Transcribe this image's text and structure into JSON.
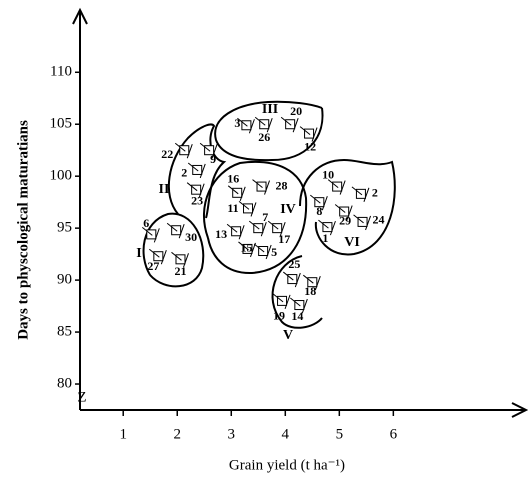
{
  "chart_data": {
    "type": "scatter",
    "x_label": "Grain yield (t ha⁻¹)",
    "y_label": "Days to physcological maturatians",
    "axis_break": "Z",
    "xlim": [
      0.2,
      8.4
    ],
    "ylim": [
      77.5,
      115.8
    ],
    "xticks": [
      1,
      2,
      3,
      4,
      5,
      6
    ],
    "yticks": [
      80,
      85,
      90,
      95,
      100,
      105,
      110
    ],
    "point_labels": [
      "1",
      "2",
      "2",
      "3",
      "5",
      "6",
      "7",
      "8",
      "9",
      "10",
      "11",
      "12",
      "13",
      "14",
      "15",
      "16",
      "17",
      "18",
      "19",
      "20",
      "21",
      "22",
      "23",
      "24",
      "25",
      "26",
      "27",
      "28",
      "29",
      "30"
    ],
    "x": [
      4.78,
      5.4,
      2.37,
      3.28,
      3.59,
      1.52,
      3.5,
      4.63,
      2.59,
      4.96,
      3.31,
      4.44,
      3.09,
      4.26,
      3.3,
      3.11,
      3.85,
      4.5,
      3.94,
      4.09,
      2.06,
      2.13,
      2.35,
      5.43,
      4.13,
      3.61,
      1.65,
      3.56,
      5.09,
      1.98
    ],
    "y": [
      95.1,
      98.3,
      100.6,
      104.9,
      92.8,
      94.4,
      95.0,
      97.5,
      102.5,
      99.0,
      96.9,
      104.1,
      94.7,
      87.6,
      93.0,
      98.4,
      95.0,
      89.8,
      88.0,
      105.0,
      92.0,
      102.5,
      98.7,
      95.6,
      90.1,
      105.0,
      92.3,
      99.0,
      96.6,
      94.8
    ],
    "clusters": [
      "I",
      "II",
      "III",
      "IV",
      "V",
      "VI"
    ]
  }
}
